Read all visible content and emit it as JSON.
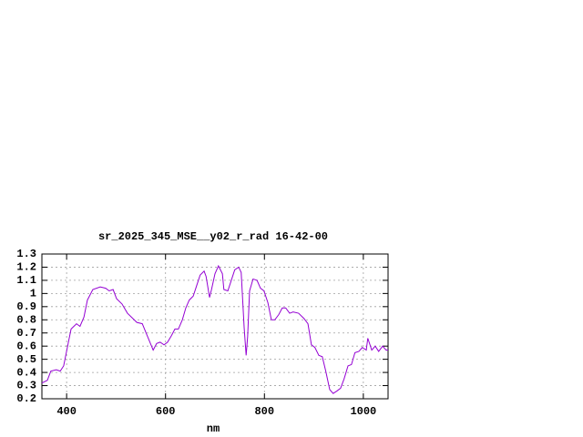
{
  "chart_data": {
    "type": "line",
    "title": "sr_2025_345_MSE__y02_r_rad 16-42-00",
    "x_label": "nm",
    "x": [
      350,
      361,
      368,
      379,
      387,
      394,
      402,
      409,
      420,
      427,
      435,
      442,
      453,
      468,
      479,
      486,
      494,
      501,
      512,
      523,
      534,
      542,
      553,
      564,
      575,
      582,
      589,
      597,
      604,
      612,
      619,
      626,
      634,
      641,
      648,
      656,
      663,
      670,
      678,
      682,
      689,
      693,
      700,
      707,
      715,
      718,
      726,
      733,
      740,
      748,
      753,
      759,
      763,
      766,
      770,
      777,
      785,
      792,
      799,
      807,
      814,
      821,
      829,
      836,
      843,
      851,
      858,
      869,
      880,
      888,
      895,
      902,
      910,
      917,
      924,
      932,
      939,
      947,
      954,
      961,
      969,
      976,
      983,
      991,
      998,
      1006,
      1009,
      1017,
      1024,
      1031,
      1039,
      1046,
      1050
    ],
    "values": [
      0.32,
      0.34,
      0.41,
      0.42,
      0.41,
      0.45,
      0.6,
      0.73,
      0.77,
      0.75,
      0.82,
      0.95,
      1.03,
      1.05,
      1.04,
      1.02,
      1.03,
      0.96,
      0.92,
      0.85,
      0.81,
      0.78,
      0.77,
      0.67,
      0.57,
      0.62,
      0.63,
      0.61,
      0.63,
      0.68,
      0.73,
      0.73,
      0.8,
      0.89,
      0.95,
      0.98,
      1.06,
      1.14,
      1.17,
      1.13,
      0.97,
      1.03,
      1.15,
      1.21,
      1.15,
      1.03,
      1.02,
      1.1,
      1.18,
      1.2,
      1.16,
      0.74,
      0.53,
      0.67,
      1.02,
      1.11,
      1.1,
      1.04,
      1.02,
      0.93,
      0.8,
      0.8,
      0.84,
      0.89,
      0.89,
      0.85,
      0.86,
      0.85,
      0.81,
      0.77,
      0.61,
      0.59,
      0.53,
      0.52,
      0.41,
      0.27,
      0.24,
      0.26,
      0.28,
      0.35,
      0.45,
      0.46,
      0.55,
      0.56,
      0.59,
      0.57,
      0.66,
      0.57,
      0.6,
      0.56,
      0.6,
      0.57,
      0.57
    ],
    "color": "#9400d3",
    "xlim": [
      350,
      1050
    ],
    "xticks": [
      400,
      600,
      800,
      1000
    ],
    "ylim": [
      0.2,
      1.3
    ],
    "yticks": [
      0.2,
      0.3,
      0.4,
      0.5,
      0.6,
      0.7,
      0.8,
      0.9,
      1,
      1.1,
      1.2,
      1.3
    ],
    "grid": true
  }
}
